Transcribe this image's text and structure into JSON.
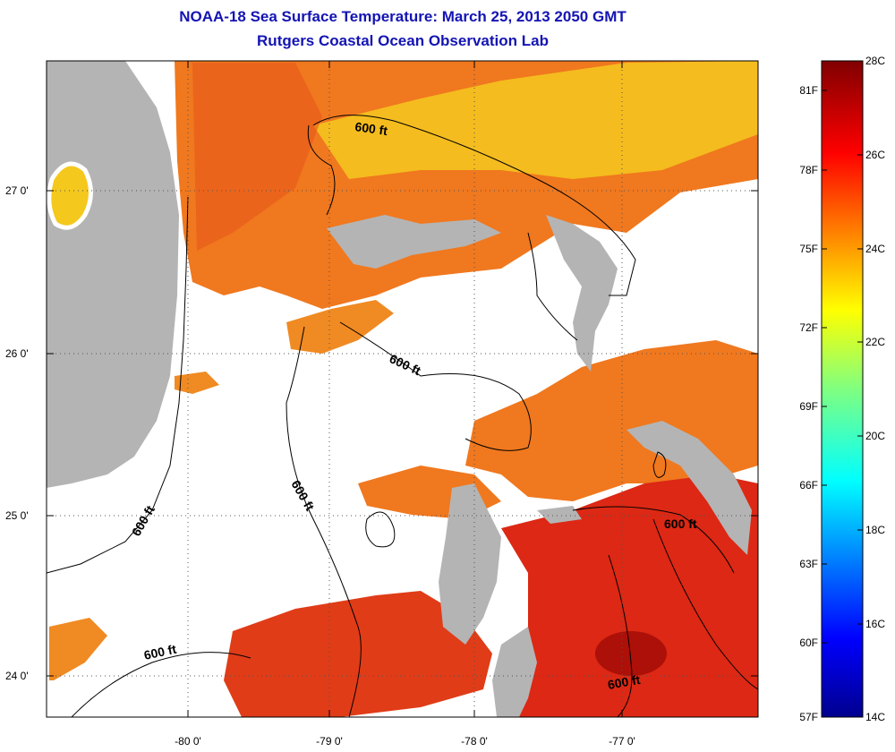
{
  "header": {
    "title": "NOAA-18 Sea Surface Temperature:  March 25, 2013 2050 GMT",
    "subtitle": "Rutgers Coastal Ocean Observation Lab"
  },
  "map": {
    "lon_labels": [
      "-80 0'",
      "-79 0'",
      "-78 0'",
      "-77 0'"
    ],
    "lat_labels": [
      "27 0'",
      "26 0'",
      "25 0'",
      "24 0'"
    ],
    "isobath_label": "600 ft",
    "colors": {
      "land": "#b4b4b4",
      "no_data": "#ffffff",
      "warm": "#f0781e",
      "hot": "#dc2814",
      "yellow": "#f5c81e"
    }
  },
  "colorbar": {
    "celsius_labels": [
      "28C",
      "26C",
      "24C",
      "22C",
      "20C",
      "18C",
      "16C",
      "14C"
    ],
    "fahrenheit_labels": [
      "81F",
      "78F",
      "75F",
      "72F",
      "69F",
      "66F",
      "63F",
      "60F",
      "57F"
    ]
  }
}
